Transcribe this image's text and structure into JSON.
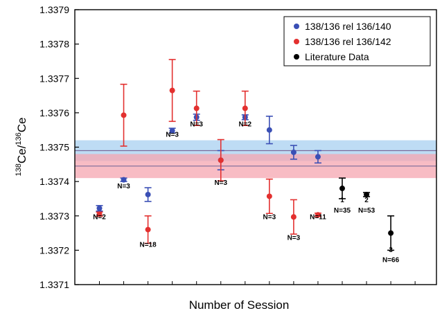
{
  "chart_data": {
    "type": "scatter",
    "xlabel": "Number of Session",
    "ylabel": {
      "sup1": "138",
      "base1": "Ce/",
      "sup2": "136",
      "base2": "Ce"
    },
    "ylim": [
      1.3371,
      1.3379
    ],
    "yticks": [
      "1.3371",
      "1.3372",
      "1.3373",
      "1.3374",
      "1.3375",
      "1.3376",
      "1.3377",
      "1.3378",
      "1.3379"
    ],
    "x_minor_ticks": 15,
    "bands": [
      {
        "series": "138/136 rel 136/140",
        "low": 1.33746,
        "high": 1.33752,
        "mean": 1.33749,
        "color": "#a8d0f0"
      },
      {
        "series": "138/136 rel 136/142",
        "low": 1.33741,
        "high": 1.33748,
        "mean": 1.337445,
        "color": "#f6a6b0"
      }
    ],
    "series": [
      {
        "name": "138/136 rel 136/140",
        "color": "#3a4fb5",
        "points": [
          {
            "x": 1,
            "y": 1.337322,
            "err": 8e-06
          },
          {
            "x": 2,
            "y": 1.337405,
            "err": 5e-06
          },
          {
            "x": 3,
            "y": 1.337362,
            "err": 2e-05
          },
          {
            "x": 4,
            "y": 1.337548,
            "err": 7e-06
          },
          {
            "x": 5,
            "y": 1.337587,
            "err": 9e-06
          },
          {
            "x": 6,
            "y": 1.337462,
            "err": 2.8e-05
          },
          {
            "x": 7,
            "y": 1.337587,
            "err": 7e-06
          },
          {
            "x": 8,
            "y": 1.33755,
            "err": 4e-05
          },
          {
            "x": 9,
            "y": 1.337485,
            "err": 2e-05
          },
          {
            "x": 10,
            "y": 1.337472,
            "err": 1.8e-05
          }
        ]
      },
      {
        "name": "138/136 rel 136/142",
        "color": "#e3302f",
        "points": [
          {
            "x": 1,
            "y": 1.337305,
            "err": 6e-06
          },
          {
            "x": 2,
            "y": 1.337593,
            "err": 9e-05
          },
          {
            "x": 3,
            "y": 1.33726,
            "err": 4e-05
          },
          {
            "x": 4,
            "y": 1.337665,
            "err": 9e-05
          },
          {
            "x": 5,
            "y": 1.337613,
            "err": 5e-05
          },
          {
            "x": 6,
            "y": 1.337462,
            "err": 6e-05
          },
          {
            "x": 7,
            "y": 1.337613,
            "err": 5e-05
          },
          {
            "x": 8,
            "y": 1.337357,
            "err": 5e-05
          },
          {
            "x": 9,
            "y": 1.337297,
            "err": 5e-05
          },
          {
            "x": 10,
            "y": 1.337303,
            "err": 5e-06
          }
        ]
      },
      {
        "name": "Literature Data",
        "color": "#000000",
        "points": [
          {
            "x": 11,
            "y": 1.33738,
            "err": 3e-05
          },
          {
            "x": 12,
            "y": 1.337362,
            "err": 6e-06
          },
          {
            "x": 13,
            "y": 1.33725,
            "err": 5e-05
          }
        ]
      }
    ],
    "annotations": [
      {
        "x": 1,
        "y": 1.33729,
        "text": "N=2"
      },
      {
        "x": 2,
        "y": 1.33738,
        "text": "N=3"
      },
      {
        "x": 3,
        "y": 1.33721,
        "text": "N=18"
      },
      {
        "x": 4,
        "y": 1.33753,
        "text": "N=3"
      },
      {
        "x": 5,
        "y": 1.33756,
        "text": "N=3"
      },
      {
        "x": 6,
        "y": 1.33739,
        "text": "N=3"
      },
      {
        "x": 7,
        "y": 1.33756,
        "text": "N=2"
      },
      {
        "x": 8,
        "y": 1.33729,
        "text": "N=3"
      },
      {
        "x": 9,
        "y": 1.33723,
        "text": "N=3"
      },
      {
        "x": 10,
        "y": 1.33729,
        "text": "N=11"
      },
      {
        "x": 11,
        "y": 1.33734,
        "text": "1"
      },
      {
        "x": 11,
        "y": 1.33731,
        "text": "N=35"
      },
      {
        "x": 12,
        "y": 1.33734,
        "text": "2"
      },
      {
        "x": 12,
        "y": 1.33731,
        "text": "N=53"
      },
      {
        "x": 13,
        "y": 1.337195,
        "text": "3"
      },
      {
        "x": 13,
        "y": 1.337165,
        "text": "N=66"
      }
    ],
    "legend": {
      "position": "top-right",
      "entries": [
        {
          "label": "138/136 rel 136/140",
          "color": "#3a4fb5"
        },
        {
          "label": "138/136 rel 136/142",
          "color": "#e3302f"
        },
        {
          "label": "Literature Data",
          "color": "#000000"
        }
      ]
    }
  }
}
